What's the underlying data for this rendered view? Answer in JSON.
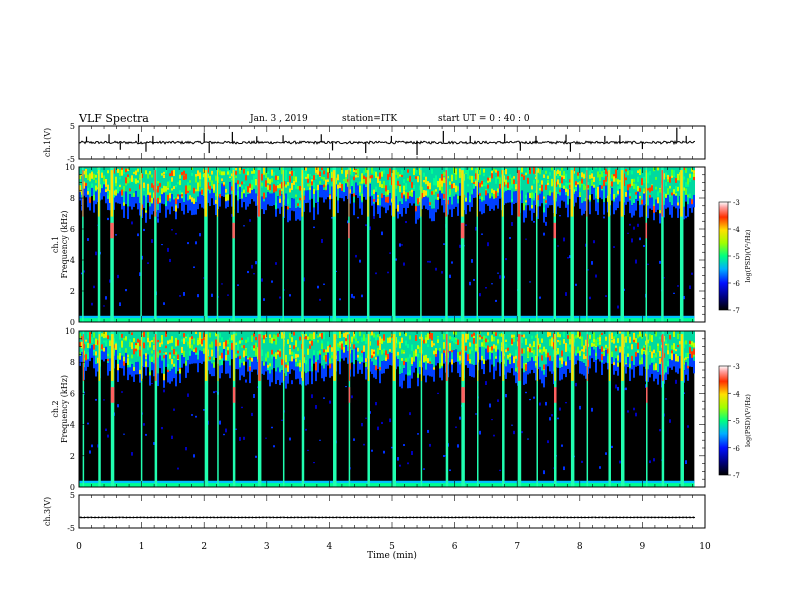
{
  "header": {
    "title": "VLF Spectra",
    "date": "Jan. 3 , 2019",
    "station": "station=ITK",
    "start": "start UT =  0 : 40 : 0"
  },
  "chart_data": [
    {
      "type": "line",
      "panel": "ch1-waveform",
      "ylabel": "ch.1(V)",
      "ylim": [
        -5,
        5
      ],
      "ytick_labels": [
        "5",
        "-5"
      ],
      "xlim": [
        0,
        10
      ],
      "baseline": 0,
      "noise_amplitude": 0.4,
      "spikes": [
        {
          "t": 0.12,
          "v": 1.8
        },
        {
          "t": 0.48,
          "v": 2.5
        },
        {
          "t": 0.66,
          "v": -2.2
        },
        {
          "t": 0.95,
          "v": 2.6
        },
        {
          "t": 1.07,
          "v": -2.8
        },
        {
          "t": 1.18,
          "v": 2.0
        },
        {
          "t": 2.0,
          "v": 3.0
        },
        {
          "t": 2.08,
          "v": -3.2
        },
        {
          "t": 2.45,
          "v": 3.2
        },
        {
          "t": 2.84,
          "v": 1.9
        },
        {
          "t": 3.26,
          "v": 2.2
        },
        {
          "t": 3.87,
          "v": 2.5
        },
        {
          "t": 4.05,
          "v": -2.4
        },
        {
          "t": 4.58,
          "v": -3.2
        },
        {
          "t": 4.99,
          "v": 2.0
        },
        {
          "t": 5.4,
          "v": -3.8
        },
        {
          "t": 5.82,
          "v": 3.5
        },
        {
          "t": 6.25,
          "v": 2.0
        },
        {
          "t": 6.8,
          "v": 2.6
        },
        {
          "t": 7.05,
          "v": -2.5
        },
        {
          "t": 7.3,
          "v": 2.0
        },
        {
          "t": 7.78,
          "v": 2.4
        },
        {
          "t": 7.85,
          "v": -2.8
        },
        {
          "t": 8.4,
          "v": 2.0
        },
        {
          "t": 8.64,
          "v": 2.2
        },
        {
          "t": 9.0,
          "v": -2.0
        },
        {
          "t": 9.55,
          "v": 4.5
        },
        {
          "t": 9.7,
          "v": 2.0
        }
      ]
    },
    {
      "type": "heatmap",
      "panel": "ch1-spectrogram",
      "ylabel": "ch.1 Frequency (kHz)",
      "ylim": [
        0,
        10
      ],
      "ytick_labels": [
        "0",
        "2",
        "4",
        "6",
        "8",
        "10"
      ],
      "xlim": [
        0,
        9.83
      ],
      "colorbar": {
        "label": "log(PSD)(V²/Hz)",
        "range": [
          -7,
          -3
        ],
        "tick_labels": [
          "-3",
          "-4",
          "-5",
          "-6",
          "-7"
        ]
      },
      "bursts": [
        0.05,
        0.3,
        0.5,
        0.98,
        1.2,
        2.0,
        2.2,
        2.45,
        2.85,
        3.25,
        3.55,
        4.05,
        4.3,
        4.6,
        5.0,
        5.45,
        5.85,
        6.1,
        6.35,
        6.75,
        7.0,
        7.3,
        7.58,
        7.85,
        8.1,
        8.45,
        8.65,
        9.05,
        9.3,
        9.6
      ]
    },
    {
      "type": "heatmap",
      "panel": "ch2-spectrogram",
      "ylabel": "ch.2 Frequency (kHz)",
      "ylim": [
        0,
        10
      ],
      "ytick_labels": [
        "0",
        "2",
        "4",
        "6",
        "8",
        "10"
      ],
      "xlim": [
        0,
        9.83
      ],
      "colorbar": {
        "label": "log(PSD)(V²/Hz)",
        "range": [
          -7,
          -3
        ],
        "tick_labels": [
          "-3",
          "-4",
          "-5",
          "-6",
          "-7"
        ]
      },
      "bursts": [
        0.05,
        0.3,
        0.5,
        0.98,
        1.2,
        2.0,
        2.2,
        2.45,
        2.85,
        3.25,
        3.55,
        4.05,
        4.3,
        4.6,
        5.0,
        5.45,
        5.85,
        6.1,
        6.35,
        6.75,
        7.0,
        7.3,
        7.58,
        7.85,
        8.1,
        8.45,
        8.65,
        9.05,
        9.3,
        9.6
      ]
    },
    {
      "type": "line",
      "panel": "ch3-waveform",
      "ylabel": "ch.3(V)",
      "ylim": [
        -5,
        5
      ],
      "ytick_labels": [
        "5",
        "-5"
      ],
      "xlim": [
        0,
        10
      ],
      "baseline": -1.8,
      "noise_amplitude": 0.05,
      "spikes": []
    }
  ],
  "xaxis": {
    "label": "Time (min)",
    "range": [
      0,
      10
    ],
    "tick_labels": [
      "0",
      "1",
      "2",
      "3",
      "4",
      "5",
      "6",
      "7",
      "8",
      "9",
      "10"
    ]
  }
}
